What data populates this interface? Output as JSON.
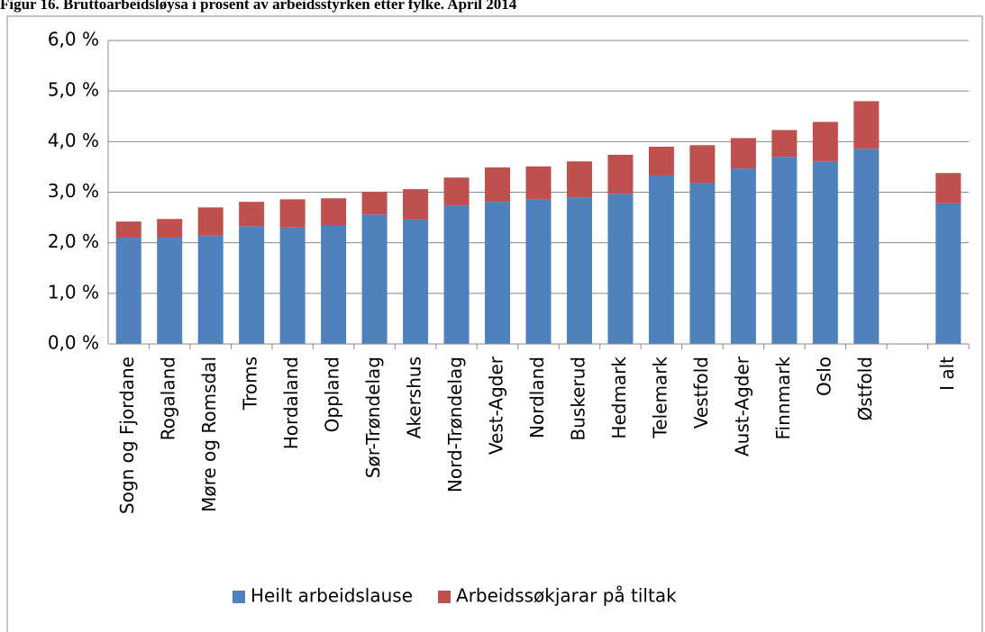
{
  "chart_data": {
    "type": "stacked-bar",
    "title": "Figur 16. Bruttoarbeidsløysa i prosent av arbeidsstyrken etter fylke. April 2014",
    "categories": [
      "Sogn og Fjordane",
      "Rogaland",
      "Møre og Romsdal",
      "Troms",
      "Hordaland",
      "Oppland",
      "Sør-Trøndelag",
      "Akershus",
      "Nord-Trøndelag",
      "Vest-Agder",
      "Nordland",
      "Buskerud",
      "Hedmark",
      "Telemark",
      "Vestfold",
      "Aust-Agder",
      "Finnmark",
      "Oslo",
      "Østfold",
      null,
      "I alt"
    ],
    "series": [
      {
        "name": "Heilt arbeidslause",
        "color": "#4f81bd",
        "values": [
          2.1,
          2.1,
          2.14,
          2.33,
          2.3,
          2.35,
          2.56,
          2.46,
          2.74,
          2.81,
          2.86,
          2.9,
          2.97,
          3.33,
          3.18,
          3.47,
          3.7,
          3.61,
          3.86,
          null,
          2.78
        ]
      },
      {
        "name": "Arbeidssøkjarar på tiltak",
        "color": "#c0504d",
        "values": [
          0.32,
          0.37,
          0.56,
          0.48,
          0.56,
          0.53,
          0.45,
          0.6,
          0.55,
          0.68,
          0.65,
          0.71,
          0.77,
          0.57,
          0.75,
          0.6,
          0.53,
          0.78,
          0.94,
          null,
          0.6
        ]
      }
    ],
    "ylim": [
      0,
      6
    ],
    "yticks": [
      {
        "value": 0,
        "label": "0,0 %"
      },
      {
        "value": 1,
        "label": "1,0 %"
      },
      {
        "value": 2,
        "label": "2,0 %"
      },
      {
        "value": 3,
        "label": "3,0 %"
      },
      {
        "value": 4,
        "label": "4,0 %"
      },
      {
        "value": 5,
        "label": "5,0 %"
      },
      {
        "value": 6,
        "label": "6,0 %"
      }
    ],
    "grid": true,
    "legend": "bottom"
  }
}
